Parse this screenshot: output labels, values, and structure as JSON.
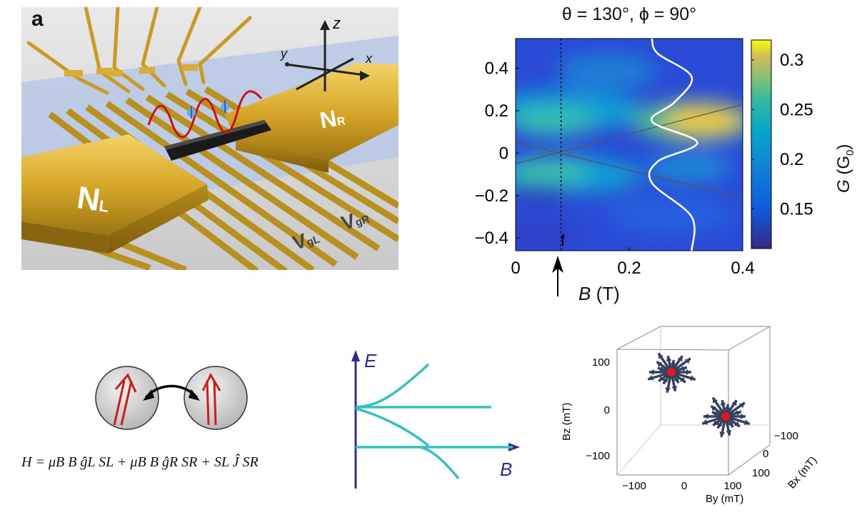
{
  "panel_a": {
    "label": "a",
    "axis_labels": {
      "x": "x",
      "y": "y",
      "z": "z"
    },
    "contact_left": {
      "main": "N",
      "sub": "L"
    },
    "contact_right": {
      "main": "N",
      "sub": "R"
    },
    "gate_left": {
      "main": "V",
      "sub": "gL"
    },
    "gate_right": {
      "main": "V",
      "sub": "gR"
    }
  },
  "map": {
    "title": "θ = 130°, ϕ = 90°",
    "xlabel_var": "B",
    "xlabel_unit": "(T)",
    "colorbar_var": "G",
    "colorbar_unit": "(G",
    "colorbar_unit_sub": "0",
    "colorbar_unit_close": ")",
    "marker_label": "f"
  },
  "diagram": {
    "e_label": "E",
    "b_label": "B",
    "hamiltonian": "H = μB B ĝL SL + μB B ĝR SR + SL Ĵ SR"
  },
  "cube": {
    "xlabel": "By (mT)",
    "ylabel": "Bz (mT)",
    "zlabel": "Bx (mT)",
    "tick_labels_y": [
      "−100",
      "0",
      "100"
    ],
    "tick_labels_z": [
      "100",
      "0",
      "−100"
    ],
    "tick_labels_x": [
      "−100",
      "0",
      "100"
    ]
  },
  "chart_data": {
    "type": "heatmap",
    "title": "θ = 130°, ϕ = 90°",
    "xlabel": "B (T)",
    "ylabel": "",
    "xlim": [
      0,
      0.4
    ],
    "ylim": [
      -0.46,
      0.54
    ],
    "x_ticks": [
      "0",
      "0.2",
      "0.4"
    ],
    "y_ticks": [
      "0.4",
      "0.2",
      "0",
      "−0.2",
      "−0.4"
    ],
    "colorbar": {
      "label": "G (G0)",
      "range": [
        0.11,
        0.32
      ],
      "ticks": [
        "0.3",
        "0.25",
        "0.2",
        "0.15"
      ]
    },
    "marker_B": 0.08,
    "lines": [
      {
        "points": [
          [
            0,
            -0.05
          ],
          [
            0.4,
            0.23
          ]
        ]
      },
      {
        "points": [
          [
            0,
            0.05
          ],
          [
            0.4,
            -0.21
          ]
        ]
      }
    ],
    "white_trace": [
      [
        0.24,
        0.54
      ],
      [
        0.25,
        0.47
      ],
      [
        0.31,
        0.36
      ],
      [
        0.28,
        0.24
      ],
      [
        0.24,
        0.15
      ],
      [
        0.32,
        0.05
      ],
      [
        0.25,
        -0.04
      ],
      [
        0.24,
        -0.14
      ],
      [
        0.31,
        -0.3
      ],
      [
        0.31,
        -0.46
      ]
    ]
  }
}
